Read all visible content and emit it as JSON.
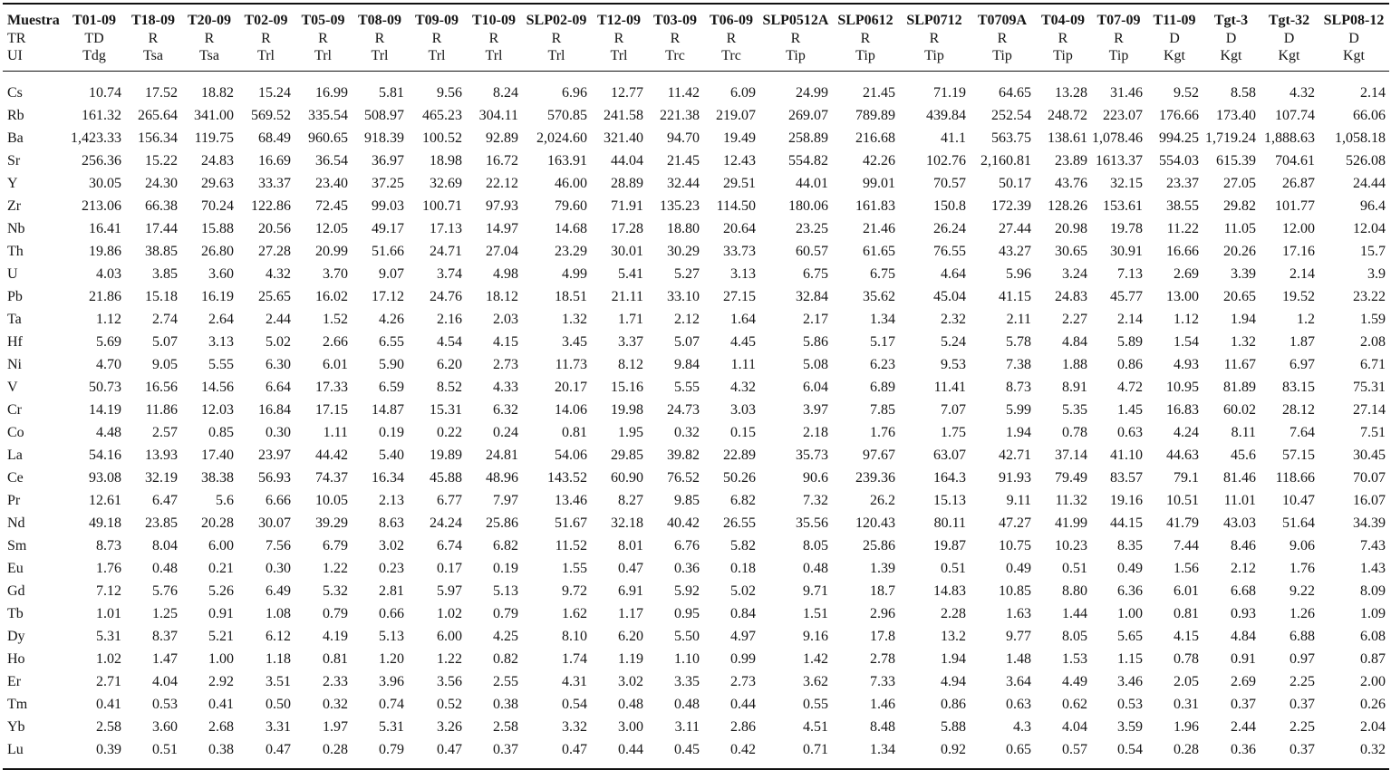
{
  "table": {
    "header": [
      [
        "Muestra",
        "T01-09",
        "T18-09",
        "T20-09",
        "T02-09",
        "T05-09",
        "T08-09",
        "T09-09",
        "T10-09",
        "SLP02-09",
        "T12-09",
        "T03-09",
        "T06-09",
        "SLP0512A",
        "SLP0612",
        "SLP0712",
        "T0709A",
        "T04-09",
        "T07-09",
        "T11-09",
        "Tgt-3",
        "Tgt-32",
        "SLP08-12"
      ],
      [
        "TR",
        "TD",
        "R",
        "R",
        "R",
        "R",
        "R",
        "R",
        "R",
        "R",
        "R",
        "R",
        "R",
        "R",
        "R",
        "R",
        "R",
        "R",
        "R",
        "D",
        "D",
        "D",
        "D"
      ],
      [
        "UI",
        "Tdg",
        "Tsa",
        "Tsa",
        "Trl",
        "Trl",
        "Trl",
        "Trl",
        "Trl",
        "Trl",
        "Trl",
        "Trc",
        "Trc",
        "Tip",
        "Tip",
        "Tip",
        "Tip",
        "Tip",
        "Tip",
        "Kgt",
        "Kgt",
        "Kgt",
        "Kgt"
      ]
    ],
    "rows": [
      [
        "Cs",
        "10.74",
        "17.52",
        "18.82",
        "15.24",
        "16.99",
        "5.81",
        "9.56",
        "8.24",
        "6.96",
        "12.77",
        "11.42",
        "6.09",
        "24.99",
        "21.45",
        "71.19",
        "64.65",
        "13.28",
        "31.46",
        "9.52",
        "8.58",
        "4.32",
        "2.14"
      ],
      [
        "Rb",
        "161.32",
        "265.64",
        "341.00",
        "569.52",
        "335.54",
        "508.97",
        "465.23",
        "304.11",
        "570.85",
        "241.58",
        "221.38",
        "219.07",
        "269.07",
        "789.89",
        "439.84",
        "252.54",
        "248.72",
        "223.07",
        "176.66",
        "173.40",
        "107.74",
        "66.06"
      ],
      [
        "Ba",
        "1,423.33",
        "156.34",
        "119.75",
        "68.49",
        "960.65",
        "918.39",
        "100.52",
        "92.89",
        "2,024.60",
        "321.40",
        "94.70",
        "19.49",
        "258.89",
        "216.68",
        "41.1",
        "563.75",
        "138.61",
        "1,078.46",
        "994.25",
        "1,719.24",
        "1,888.63",
        "1,058.18"
      ],
      [
        "Sr",
        "256.36",
        "15.22",
        "24.83",
        "16.69",
        "36.54",
        "36.97",
        "18.98",
        "16.72",
        "163.91",
        "44.04",
        "21.45",
        "12.43",
        "554.82",
        "42.26",
        "102.76",
        "2,160.81",
        "23.89",
        "1613.37",
        "554.03",
        "615.39",
        "704.61",
        "526.08"
      ],
      [
        "Y",
        "30.05",
        "24.30",
        "29.63",
        "33.37",
        "23.40",
        "37.25",
        "32.69",
        "22.12",
        "46.00",
        "28.89",
        "32.44",
        "29.51",
        "44.01",
        "99.01",
        "70.57",
        "50.17",
        "43.76",
        "32.15",
        "23.37",
        "27.05",
        "26.87",
        "24.44"
      ],
      [
        "Zr",
        "213.06",
        "66.38",
        "70.24",
        "122.86",
        "72.45",
        "99.03",
        "100.71",
        "97.93",
        "79.60",
        "71.91",
        "135.23",
        "114.50",
        "180.06",
        "161.83",
        "150.8",
        "172.39",
        "128.26",
        "153.61",
        "38.55",
        "29.82",
        "101.77",
        "96.4"
      ],
      [
        "Nb",
        "16.41",
        "17.44",
        "15.88",
        "20.56",
        "12.05",
        "49.17",
        "17.13",
        "14.97",
        "14.68",
        "17.28",
        "18.80",
        "20.64",
        "23.25",
        "21.46",
        "26.24",
        "27.44",
        "20.98",
        "19.78",
        "11.22",
        "11.05",
        "12.00",
        "12.04"
      ],
      [
        "Th",
        "19.86",
        "38.85",
        "26.80",
        "27.28",
        "20.99",
        "51.66",
        "24.71",
        "27.04",
        "23.29",
        "30.01",
        "30.29",
        "33.73",
        "60.57",
        "61.65",
        "76.55",
        "43.27",
        "30.65",
        "30.91",
        "16.66",
        "20.26",
        "17.16",
        "15.7"
      ],
      [
        "U",
        "4.03",
        "3.85",
        "3.60",
        "4.32",
        "3.70",
        "9.07",
        "3.74",
        "4.98",
        "4.99",
        "5.41",
        "5.27",
        "3.13",
        "6.75",
        "6.75",
        "4.64",
        "5.96",
        "3.24",
        "7.13",
        "2.69",
        "3.39",
        "2.14",
        "3.9"
      ],
      [
        "Pb",
        "21.86",
        "15.18",
        "16.19",
        "25.65",
        "16.02",
        "17.12",
        "24.76",
        "18.12",
        "18.51",
        "21.11",
        "33.10",
        "27.15",
        "32.84",
        "35.62",
        "45.04",
        "41.15",
        "24.83",
        "45.77",
        "13.00",
        "20.65",
        "19.52",
        "23.22"
      ],
      [
        "Ta",
        "1.12",
        "2.74",
        "2.64",
        "2.44",
        "1.52",
        "4.26",
        "2.16",
        "2.03",
        "1.32",
        "1.71",
        "2.12",
        "1.64",
        "2.17",
        "1.34",
        "2.32",
        "2.11",
        "2.27",
        "2.14",
        "1.12",
        "1.94",
        "1.2",
        "1.59"
      ],
      [
        "Hf",
        "5.69",
        "5.07",
        "3.13",
        "5.02",
        "2.66",
        "6.55",
        "4.54",
        "4.15",
        "3.45",
        "3.37",
        "5.07",
        "4.45",
        "5.86",
        "5.17",
        "5.24",
        "5.78",
        "4.84",
        "5.89",
        "1.54",
        "1.32",
        "1.87",
        "2.08"
      ],
      [
        "Ni",
        "4.70",
        "9.05",
        "5.55",
        "6.30",
        "6.01",
        "5.90",
        "6.20",
        "2.73",
        "11.73",
        "8.12",
        "9.84",
        "1.11",
        "5.08",
        "6.23",
        "9.53",
        "7.38",
        "1.88",
        "0.86",
        "4.93",
        "11.67",
        "6.97",
        "6.71"
      ],
      [
        "V",
        "50.73",
        "16.56",
        "14.56",
        "6.64",
        "17.33",
        "6.59",
        "8.52",
        "4.33",
        "20.17",
        "15.16",
        "5.55",
        "4.32",
        "6.04",
        "6.89",
        "11.41",
        "8.73",
        "8.91",
        "4.72",
        "10.95",
        "81.89",
        "83.15",
        "75.31"
      ],
      [
        "Cr",
        "14.19",
        "11.86",
        "12.03",
        "16.84",
        "17.15",
        "14.87",
        "15.31",
        "6.32",
        "14.06",
        "19.98",
        "24.73",
        "3.03",
        "3.97",
        "7.85",
        "7.07",
        "5.99",
        "5.35",
        "1.45",
        "16.83",
        "60.02",
        "28.12",
        "27.14"
      ],
      [
        "Co",
        "4.48",
        "2.57",
        "0.85",
        "0.30",
        "1.11",
        "0.19",
        "0.22",
        "0.24",
        "0.81",
        "1.95",
        "0.32",
        "0.15",
        "2.18",
        "1.76",
        "1.75",
        "1.94",
        "0.78",
        "0.63",
        "4.24",
        "8.11",
        "7.64",
        "7.51"
      ],
      [
        "La",
        "54.16",
        "13.93",
        "17.40",
        "23.97",
        "44.42",
        "5.40",
        "19.89",
        "24.81",
        "54.06",
        "29.85",
        "39.82",
        "22.89",
        "35.73",
        "97.67",
        "63.07",
        "42.71",
        "37.14",
        "41.10",
        "44.63",
        "45.6",
        "57.15",
        "30.45"
      ],
      [
        "Ce",
        "93.08",
        "32.19",
        "38.38",
        "56.93",
        "74.37",
        "16.34",
        "45.88",
        "48.96",
        "143.52",
        "60.90",
        "76.52",
        "50.26",
        "90.6",
        "239.36",
        "164.3",
        "91.93",
        "79.49",
        "83.57",
        "79.1",
        "81.46",
        "118.66",
        "70.07"
      ],
      [
        "Pr",
        "12.61",
        "6.47",
        "5.6",
        "6.66",
        "10.05",
        "2.13",
        "6.77",
        "7.97",
        "13.46",
        "8.27",
        "9.85",
        "6.82",
        "7.32",
        "26.2",
        "15.13",
        "9.11",
        "11.32",
        "19.16",
        "10.51",
        "11.01",
        "10.47",
        "16.07"
      ],
      [
        "Nd",
        "49.18",
        "23.85",
        "20.28",
        "30.07",
        "39.29",
        "8.63",
        "24.24",
        "25.86",
        "51.67",
        "32.18",
        "40.42",
        "26.55",
        "35.56",
        "120.43",
        "80.11",
        "47.27",
        "41.99",
        "44.15",
        "41.79",
        "43.03",
        "51.64",
        "34.39"
      ],
      [
        "Sm",
        "8.73",
        "8.04",
        "6.00",
        "7.56",
        "6.79",
        "3.02",
        "6.74",
        "6.82",
        "11.52",
        "8.01",
        "6.76",
        "5.82",
        "8.05",
        "25.86",
        "19.87",
        "10.75",
        "10.23",
        "8.35",
        "7.44",
        "8.46",
        "9.06",
        "7.43"
      ],
      [
        "Eu",
        "1.76",
        "0.48",
        "0.21",
        "0.30",
        "1.22",
        "0.23",
        "0.17",
        "0.19",
        "1.55",
        "0.47",
        "0.36",
        "0.18",
        "0.48",
        "1.39",
        "0.51",
        "0.49",
        "0.51",
        "0.49",
        "1.56",
        "2.12",
        "1.76",
        "1.43"
      ],
      [
        "Gd",
        "7.12",
        "5.76",
        "5.26",
        "6.49",
        "5.32",
        "2.81",
        "5.97",
        "5.13",
        "9.72",
        "6.91",
        "5.92",
        "5.02",
        "9.71",
        "18.7",
        "14.83",
        "10.85",
        "8.80",
        "6.36",
        "6.01",
        "6.68",
        "9.22",
        "8.09"
      ],
      [
        "Tb",
        "1.01",
        "1.25",
        "0.91",
        "1.08",
        "0.79",
        "0.66",
        "1.02",
        "0.79",
        "1.62",
        "1.17",
        "0.95",
        "0.84",
        "1.51",
        "2.96",
        "2.28",
        "1.63",
        "1.44",
        "1.00",
        "0.81",
        "0.93",
        "1.26",
        "1.09"
      ],
      [
        "Dy",
        "5.31",
        "8.37",
        "5.21",
        "6.12",
        "4.19",
        "5.13",
        "6.00",
        "4.25",
        "8.10",
        "6.20",
        "5.50",
        "4.97",
        "9.16",
        "17.8",
        "13.2",
        "9.77",
        "8.05",
        "5.65",
        "4.15",
        "4.84",
        "6.88",
        "6.08"
      ],
      [
        "Ho",
        "1.02",
        "1.47",
        "1.00",
        "1.18",
        "0.81",
        "1.20",
        "1.22",
        "0.82",
        "1.74",
        "1.19",
        "1.10",
        "0.99",
        "1.42",
        "2.78",
        "1.94",
        "1.48",
        "1.53",
        "1.15",
        "0.78",
        "0.91",
        "0.97",
        "0.87"
      ],
      [
        "Er",
        "2.71",
        "4.04",
        "2.92",
        "3.51",
        "2.33",
        "3.96",
        "3.56",
        "2.55",
        "4.31",
        "3.02",
        "3.35",
        "2.73",
        "3.62",
        "7.33",
        "4.94",
        "3.64",
        "4.49",
        "3.46",
        "2.05",
        "2.69",
        "2.25",
        "2.00"
      ],
      [
        "Tm",
        "0.41",
        "0.53",
        "0.41",
        "0.50",
        "0.32",
        "0.74",
        "0.52",
        "0.38",
        "0.54",
        "0.48",
        "0.48",
        "0.44",
        "0.55",
        "1.46",
        "0.86",
        "0.63",
        "0.62",
        "0.53",
        "0.31",
        "0.37",
        "0.37",
        "0.26"
      ],
      [
        "Yb",
        "2.58",
        "3.60",
        "2.68",
        "3.31",
        "1.97",
        "5.31",
        "3.26",
        "2.58",
        "3.32",
        "3.00",
        "3.11",
        "2.86",
        "4.51",
        "8.48",
        "5.88",
        "4.3",
        "4.04",
        "3.59",
        "1.96",
        "2.44",
        "2.25",
        "2.04"
      ],
      [
        "Lu",
        "0.39",
        "0.51",
        "0.38",
        "0.47",
        "0.28",
        "0.79",
        "0.47",
        "0.37",
        "0.47",
        "0.44",
        "0.45",
        "0.42",
        "0.71",
        "1.34",
        "0.92",
        "0.65",
        "0.57",
        "0.54",
        "0.28",
        "0.36",
        "0.37",
        "0.32"
      ]
    ]
  }
}
